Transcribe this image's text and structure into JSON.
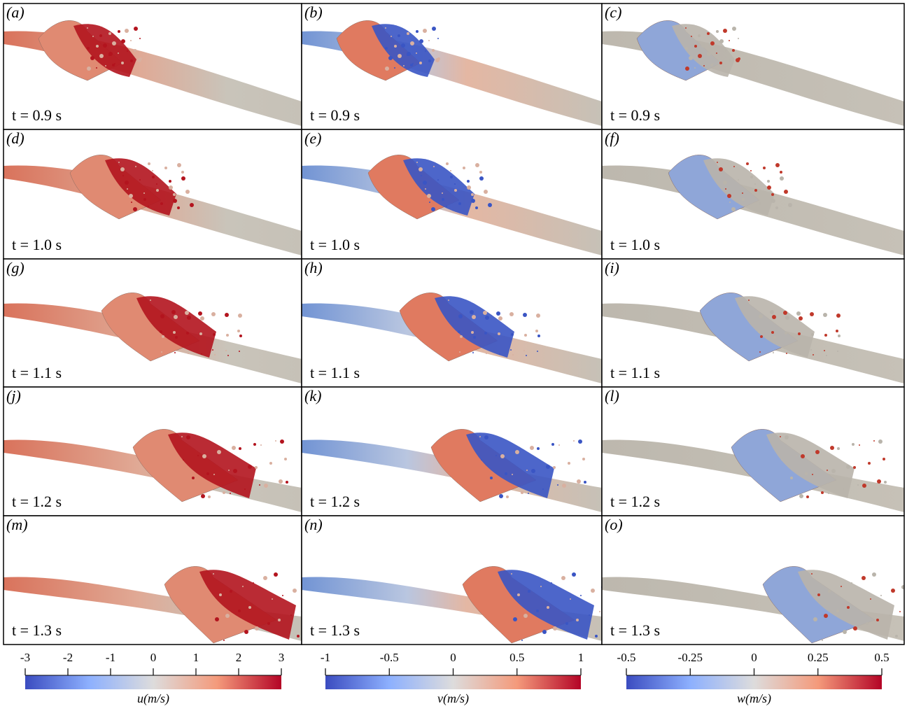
{
  "panels": [
    {
      "label": "(a)",
      "time": "t = 0.9 s"
    },
    {
      "label": "(b)",
      "time": "t = 0.9 s"
    },
    {
      "label": "(c)",
      "time": "t = 0.9 s"
    },
    {
      "label": "(d)",
      "time": "t = 1.0 s"
    },
    {
      "label": "(e)",
      "time": "t = 1.0 s"
    },
    {
      "label": "(f)",
      "time": "t = 1.0 s"
    },
    {
      "label": "(g)",
      "time": "t = 1.1 s"
    },
    {
      "label": "(h)",
      "time": "t = 1.1 s"
    },
    {
      "label": "(i)",
      "time": "t = 1.1 s"
    },
    {
      "label": "(j)",
      "time": "t = 1.2 s"
    },
    {
      "label": "(k)",
      "time": "t = 1.2 s"
    },
    {
      "label": "(l)",
      "time": "t = 1.2 s"
    },
    {
      "label": "(m)",
      "time": "t = 1.3 s"
    },
    {
      "label": "(n)",
      "time": "t = 1.3 s"
    },
    {
      "label": "(o)",
      "time": "t = 1.3 s"
    }
  ],
  "colorbars": [
    {
      "label": "u(m/s)",
      "lim": [
        -3,
        3
      ],
      "ticks": [
        -3,
        -2,
        -1,
        0,
        1,
        2,
        3
      ]
    },
    {
      "label": "v(m/s)",
      "lim": [
        -1,
        1
      ],
      "ticks": [
        -1,
        -0.5,
        0,
        0.5,
        1
      ]
    },
    {
      "label": "w(m/s)",
      "lim": [
        -0.5,
        0.5
      ],
      "ticks": [
        -0.5,
        -0.25,
        0,
        0.25,
        0.5
      ]
    }
  ]
}
